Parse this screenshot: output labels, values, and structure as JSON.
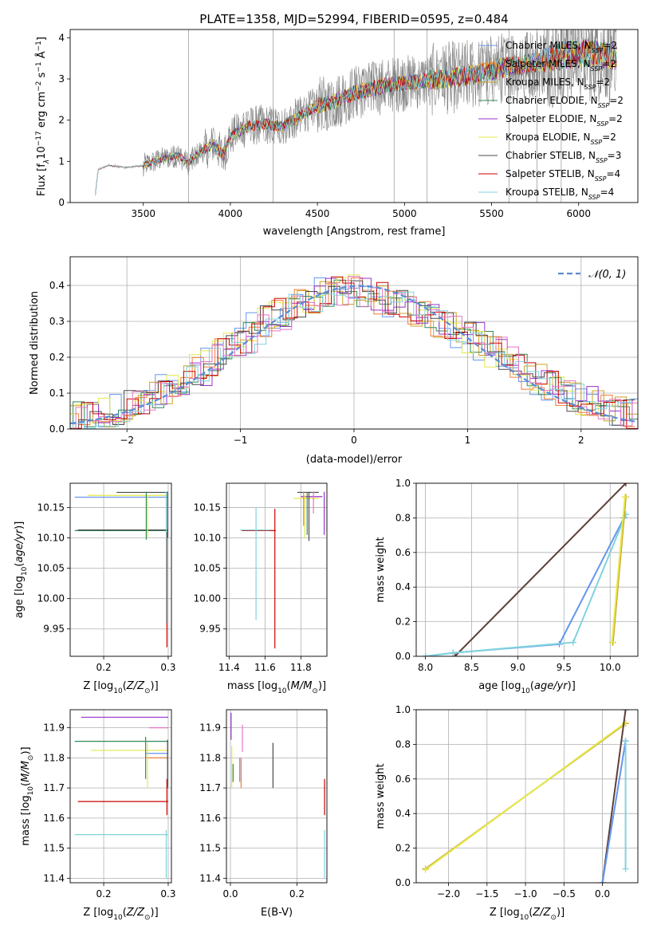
{
  "figure": {
    "title": "PLATE=1358, MJD=52994, FIBERID=0595, z=0.484"
  },
  "colors": {
    "chabrier_miles": "#6495ed",
    "salpeter_miles": "#f07f36",
    "kroupa_miles": "#c9a227",
    "chabrier_elodie": "#2e8b57",
    "salpeter_elodie": "#9932cc",
    "kroupa_elodie": "#e5e84a",
    "chabrier_stelib": "#4a4a4a",
    "salpeter_stelib": "#cc0000",
    "kroupa_stelib": "#7fd3dd",
    "pink": "#e377c2",
    "data_gray": "#808080",
    "weight_brown": "#5d4037"
  },
  "chart_data": [
    {
      "id": "spectrum",
      "type": "line",
      "title": "PLATE=1358, MJD=52994, FIBERID=0595, z=0.484",
      "xlabel": "wavelength [Angstrom, rest frame]",
      "ylabel": "Flux [f",
      "xlim": [
        3080,
        6340
      ],
      "ylim": [
        0,
        4.2
      ],
      "xticks": [
        3500,
        4000,
        4500,
        5000,
        5500,
        6000
      ],
      "yticks": [
        0,
        1,
        2,
        3,
        4
      ],
      "grid": false,
      "legend_position": "top-right",
      "legend": [
        {
          "name": "Chabrier MILES, N",
          "sub": "SSP",
          "suffix": "=2",
          "color": "#6495ed"
        },
        {
          "name": "Salpeter MILES, N",
          "sub": "SSP",
          "suffix": "=2",
          "color": "#f07f36"
        },
        {
          "name": "Kroupa MILES, N",
          "sub": "SSP",
          "suffix": "=2",
          "color": "#c9a227"
        },
        {
          "name": "Chabrier ELODIE, N",
          "sub": "SSP",
          "suffix": "=2",
          "color": "#2e8b57"
        },
        {
          "name": "Salpeter ELODIE, N",
          "sub": "SSP",
          "suffix": "=2",
          "color": "#9932cc"
        },
        {
          "name": "Kroupa ELODIE, N",
          "sub": "SSP",
          "suffix": "=2",
          "color": "#e5e84a"
        },
        {
          "name": "Chabrier STELIB, N",
          "sub": "SSP",
          "suffix": "=3",
          "color": "#4a4a4a"
        },
        {
          "name": "Salpeter STELIB, N",
          "sub": "SSP",
          "suffix": "=4",
          "color": "#cc0000"
        },
        {
          "name": "Kroupa STELIB, N",
          "sub": "SSP",
          "suffix": "=4",
          "color": "#7fd3dd"
        }
      ],
      "model_continuum": {
        "x": [
          3220,
          3240,
          3300,
          3400,
          3500,
          3600,
          3700,
          3760,
          3800,
          3900,
          3960,
          4000,
          4100,
          4200,
          4300,
          4400,
          4500,
          4600,
          4700,
          4800,
          4900,
          5000,
          5100,
          5200,
          5300,
          5400,
          5500,
          5600,
          5700,
          5800,
          5900,
          6000,
          6100,
          6200
        ],
        "y": [
          0.0,
          0.8,
          0.9,
          0.85,
          0.9,
          1.05,
          1.15,
          0.95,
          1.15,
          1.4,
          1.15,
          1.6,
          1.85,
          1.9,
          1.85,
          2.1,
          2.35,
          2.45,
          2.65,
          2.75,
          2.85,
          2.9,
          2.95,
          3.0,
          3.05,
          3.1,
          3.2,
          3.3,
          3.35,
          3.45,
          3.55,
          3.65,
          3.6,
          3.55
        ]
      },
      "data_noise_amplitude": [
        0.3,
        0.5,
        0.7,
        0.9,
        1.2
      ]
    },
    {
      "id": "residuals",
      "type": "histogram",
      "xlabel": "(data-model)/error",
      "ylabel": "Normed distribution",
      "xlim": [
        -2.5,
        2.5
      ],
      "ylim": [
        0,
        0.48
      ],
      "xticks": [
        -2,
        -1,
        0,
        1,
        2
      ],
      "yticks": [
        0.0,
        0.1,
        0.2,
        0.3,
        0.4
      ],
      "grid": true,
      "legend_position": "top-right",
      "reference": {
        "name": "𝒩(0, 1)",
        "color": "#5b8bd6",
        "style": "dashed",
        "mean": 0.05,
        "sigma": 1.0
      },
      "bin_centers": [
        -2.45,
        -2.35,
        -2.25,
        -2.15,
        -2.05,
        -1.95,
        -1.85,
        -1.75,
        -1.65,
        -1.55,
        -1.45,
        -1.35,
        -1.25,
        -1.15,
        -1.05,
        -0.95,
        -0.85,
        -0.75,
        -0.65,
        -0.55,
        -0.45,
        -0.35,
        -0.25,
        -0.15,
        -0.05,
        0.05,
        0.15,
        0.25,
        0.35,
        0.45,
        0.55,
        0.65,
        0.75,
        0.85,
        0.95,
        1.05,
        1.15,
        1.25,
        1.35,
        1.45,
        1.55,
        1.65,
        1.75,
        1.85,
        1.95,
        2.05,
        2.15,
        2.25,
        2.35,
        2.45
      ],
      "envelope": [
        0.035,
        0.03,
        0.04,
        0.045,
        0.055,
        0.065,
        0.075,
        0.09,
        0.11,
        0.125,
        0.145,
        0.165,
        0.19,
        0.215,
        0.235,
        0.255,
        0.28,
        0.3,
        0.32,
        0.335,
        0.35,
        0.365,
        0.38,
        0.385,
        0.39,
        0.385,
        0.375,
        0.365,
        0.355,
        0.345,
        0.33,
        0.315,
        0.3,
        0.285,
        0.27,
        0.255,
        0.235,
        0.215,
        0.195,
        0.175,
        0.155,
        0.14,
        0.12,
        0.105,
        0.09,
        0.08,
        0.065,
        0.055,
        0.045,
        0.04
      ]
    },
    {
      "id": "age_vs_Z",
      "type": "errorbar",
      "xlabel": "Z [log",
      "ylabel": "age  [log",
      "xlim": [
        0.148,
        0.305
      ],
      "ylim": [
        9.905,
        10.19
      ],
      "xticks": [
        0.2,
        0.3
      ],
      "yticks": [
        9.95,
        10.0,
        10.05,
        10.1,
        10.15
      ],
      "grid": true,
      "hbars": [
        {
          "x1": 0.22,
          "x2": 0.3,
          "y": 10.175,
          "color": "#4a4a4a"
        },
        {
          "x1": 0.175,
          "x2": 0.3,
          "y": 10.17,
          "color": "#e5e84a"
        },
        {
          "x1": 0.155,
          "x2": 0.3,
          "y": 10.167,
          "color": "#6495ed"
        },
        {
          "x1": 0.16,
          "x2": 0.3,
          "y": 10.113,
          "color": "#cc0000"
        },
        {
          "x1": 0.155,
          "x2": 0.3,
          "y": 10.112,
          "color": "#2e8b57"
        },
        {
          "x1": 0.16,
          "x2": 0.3,
          "y": 10.113,
          "color": "#4a4a4a"
        }
      ],
      "vbars": [
        {
          "x": 0.266,
          "y1": 10.097,
          "y2": 10.176,
          "color": "#2e8b57"
        },
        {
          "x": 0.268,
          "y1": 10.1,
          "y2": 10.17,
          "color": "#e5e84a"
        },
        {
          "x": 0.298,
          "y1": 9.92,
          "y2": 10.11,
          "color": "#cc0000"
        },
        {
          "x": 0.297,
          "y1": 9.96,
          "y2": 10.176,
          "color": "#7fd3dd"
        },
        {
          "x": 0.299,
          "y1": 10.1,
          "y2": 10.176,
          "color": "#4a4a4a"
        }
      ]
    },
    {
      "id": "age_vs_mass",
      "type": "errorbar",
      "xlabel": "mass [log",
      "ylabel": "",
      "xlim": [
        11.385,
        11.945
      ],
      "ylim": [
        9.905,
        10.19
      ],
      "xticks": [
        11.4,
        11.6,
        11.8
      ],
      "yticks": [
        9.95,
        10.0,
        10.05,
        10.1,
        10.15
      ],
      "grid": true,
      "hbars": [
        {
          "x1": 11.78,
          "x2": 11.9,
          "y": 10.175,
          "color": "#4a4a4a"
        },
        {
          "x1": 11.8,
          "x2": 11.92,
          "y": 10.168,
          "color": "#9932cc"
        },
        {
          "x1": 11.76,
          "x2": 11.9,
          "y": 10.165,
          "color": "#e5e84a"
        },
        {
          "x1": 11.47,
          "x2": 11.66,
          "y": 10.112,
          "color": "#cc0000"
        },
        {
          "x1": 11.46,
          "x2": 11.63,
          "y": 10.113,
          "color": "#7fd3dd"
        }
      ],
      "vbars": [
        {
          "x": 11.55,
          "y1": 9.965,
          "y2": 10.15,
          "color": "#7fd3dd"
        },
        {
          "x": 11.655,
          "y1": 9.918,
          "y2": 10.148,
          "color": "#cc0000"
        },
        {
          "x": 11.815,
          "y1": 10.12,
          "y2": 10.176,
          "color": "#f07f36"
        },
        {
          "x": 11.822,
          "y1": 10.1,
          "y2": 10.17,
          "color": "#e5e84a"
        },
        {
          "x": 11.835,
          "y1": 10.105,
          "y2": 10.175,
          "color": "#2e8b57"
        },
        {
          "x": 11.845,
          "y1": 10.095,
          "y2": 10.176,
          "color": "#4a4a4a"
        },
        {
          "x": 11.87,
          "y1": 10.14,
          "y2": 10.176,
          "color": "#e377c2"
        },
        {
          "x": 11.93,
          "y1": 10.105,
          "y2": 10.176,
          "color": "#9932cc"
        }
      ]
    },
    {
      "id": "weight_vs_age",
      "type": "line",
      "xlabel": "age  [log",
      "ylabel": "mass weight",
      "xlim": [
        7.9,
        10.3
      ],
      "ylim": [
        0,
        1.0
      ],
      "xticks": [
        8.0,
        8.5,
        9.0,
        9.5,
        10.0
      ],
      "yticks": [
        0.0,
        0.2,
        0.4,
        0.6,
        0.8,
        1.0
      ],
      "grid": true,
      "series": [
        {
          "x": [
            8.32,
            10.17
          ],
          "y": [
            0.0,
            1.0
          ],
          "color": "#5d4037"
        },
        {
          "x": [
            8.0,
            8.3,
            9.45,
            10.15
          ],
          "y": [
            0.0,
            0.02,
            0.07,
            0.8
          ],
          "color": "#6495ed"
        },
        {
          "x": [
            8.0,
            8.3,
            9.6,
            10.17
          ],
          "y": [
            0.0,
            0.02,
            0.08,
            0.82
          ],
          "color": "#7fd3dd"
        },
        {
          "x": [
            10.03,
            10.17
          ],
          "y": [
            0.08,
            0.92
          ],
          "color": "#c9a227"
        },
        {
          "x": [
            10.02,
            10.16
          ],
          "y": [
            0.08,
            0.92
          ],
          "color": "#e5e84a"
        }
      ]
    },
    {
      "id": "mass_vs_Z",
      "type": "errorbar",
      "xlabel": "Z [log",
      "ylabel": "mass [log",
      "xlim": [
        0.148,
        0.305
      ],
      "ylim": [
        11.385,
        11.96
      ],
      "xticks": [
        0.2,
        0.3
      ],
      "yticks": [
        11.4,
        11.5,
        11.6,
        11.7,
        11.8,
        11.9
      ],
      "grid": true,
      "hbars": [
        {
          "x1": 0.165,
          "x2": 0.3,
          "y": 11.935,
          "color": "#9932cc"
        },
        {
          "x1": 0.27,
          "x2": 0.3,
          "y": 11.9,
          "color": "#e377c2"
        },
        {
          "x1": 0.155,
          "x2": 0.3,
          "y": 11.855,
          "color": "#2e8b57"
        },
        {
          "x1": 0.18,
          "x2": 0.3,
          "y": 11.825,
          "color": "#e5e84a"
        },
        {
          "x1": 0.265,
          "x2": 0.3,
          "y": 11.815,
          "color": "#6495ed"
        },
        {
          "x1": 0.265,
          "x2": 0.3,
          "y": 11.8,
          "color": "#f07f36"
        },
        {
          "x1": 0.16,
          "x2": 0.3,
          "y": 11.655,
          "color": "#cc0000"
        },
        {
          "x1": 0.155,
          "x2": 0.3,
          "y": 11.545,
          "color": "#7fd3dd"
        }
      ],
      "vbars": [
        {
          "x": 0.265,
          "y1": 11.73,
          "y2": 11.87,
          "color": "#2e8b57"
        },
        {
          "x": 0.268,
          "y1": 11.7,
          "y2": 11.85,
          "color": "#e5e84a"
        },
        {
          "x": 0.298,
          "y1": 11.61,
          "y2": 11.73,
          "color": "#cc0000"
        },
        {
          "x": 0.297,
          "y1": 11.4,
          "y2": 11.56,
          "color": "#7fd3dd"
        },
        {
          "x": 0.299,
          "y1": 11.7,
          "y2": 11.86,
          "color": "#4a4a4a"
        }
      ]
    },
    {
      "id": "mass_vs_ebv",
      "type": "errorbar",
      "xlabel": "E(B-V)",
      "ylabel": "",
      "xlim": [
        -0.012,
        0.29
      ],
      "ylim": [
        11.385,
        11.96
      ],
      "xticks": [
        0.0,
        0.2
      ],
      "yticks": [
        11.4,
        11.5,
        11.6,
        11.7,
        11.8,
        11.9
      ],
      "grid": true,
      "hbars": [],
      "vbars": [
        {
          "x": 0.002,
          "y1": 11.86,
          "y2": 11.95,
          "color": "#9932cc"
        },
        {
          "x": 0.004,
          "y1": 11.7,
          "y2": 11.84,
          "color": "#e5e84a"
        },
        {
          "x": 0.008,
          "y1": 11.72,
          "y2": 11.78,
          "color": "#2e8b57"
        },
        {
          "x": 0.028,
          "y1": 11.72,
          "y2": 11.8,
          "color": "#6495ed"
        },
        {
          "x": 0.032,
          "y1": 11.7,
          "y2": 11.8,
          "color": "#f07f36"
        },
        {
          "x": 0.036,
          "y1": 11.82,
          "y2": 11.91,
          "color": "#e377c2"
        },
        {
          "x": 0.128,
          "y1": 11.7,
          "y2": 11.85,
          "color": "#4a4a4a"
        },
        {
          "x": 0.283,
          "y1": 11.61,
          "y2": 11.73,
          "color": "#cc0000"
        },
        {
          "x": 0.283,
          "y1": 11.4,
          "y2": 11.56,
          "color": "#7fd3dd"
        }
      ]
    },
    {
      "id": "weight_vs_Z",
      "type": "line",
      "xlabel": "Z [log",
      "ylabel": "mass weight",
      "xlim": [
        -2.42,
        0.46
      ],
      "ylim": [
        0,
        1.0
      ],
      "xticks": [
        -2.0,
        -1.5,
        -1.0,
        -0.5,
        0.0
      ],
      "yticks": [
        0.0,
        0.2,
        0.4,
        0.6,
        0.8,
        1.0
      ],
      "grid": true,
      "series": [
        {
          "x": [
            -2.3,
            0.3
          ],
          "y": [
            0.08,
            0.92
          ],
          "color": "#c9a227"
        },
        {
          "x": [
            -2.3,
            0.3
          ],
          "y": [
            0.075,
            0.925
          ],
          "color": "#e5e84a"
        },
        {
          "x": [
            0.0,
            0.3
          ],
          "y": [
            0.0,
            1.0
          ],
          "color": "#5d4037"
        },
        {
          "x": [
            0.0,
            0.3
          ],
          "y": [
            0.0,
            0.82
          ],
          "color": "#6495ed"
        },
        {
          "x": [
            0.3,
            0.3
          ],
          "y": [
            0.08,
            0.82
          ],
          "color": "#7fd3dd"
        }
      ]
    }
  ]
}
